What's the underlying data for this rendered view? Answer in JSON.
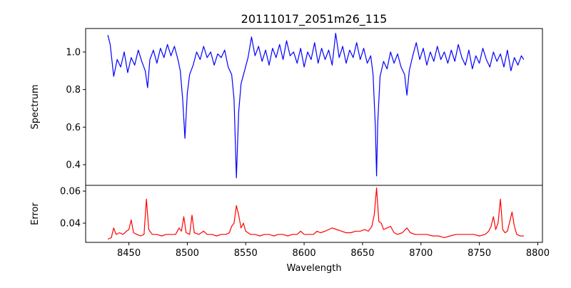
{
  "chart_data": [
    {
      "type": "line",
      "title": "20111017_2051m26_115",
      "xlabel": "",
      "ylabel": "Spectrum",
      "xlim": [
        8413,
        8804
      ],
      "ylim": [
        0.29,
        1.125
      ],
      "yticks": [
        0.4,
        0.6,
        0.8,
        1.0
      ],
      "ytick_labels": [
        "0.4",
        "0.6",
        "0.8",
        "1.0"
      ],
      "color": "#0000ff",
      "points": [
        [
          8432,
          1.09
        ],
        [
          8434,
          1.04
        ],
        [
          8437,
          0.87
        ],
        [
          8440,
          0.96
        ],
        [
          8443,
          0.92
        ],
        [
          8446,
          1.0
        ],
        [
          8449,
          0.89
        ],
        [
          8452,
          0.97
        ],
        [
          8455,
          0.93
        ],
        [
          8458,
          1.01
        ],
        [
          8461,
          0.95
        ],
        [
          8464,
          0.9
        ],
        [
          8466,
          0.81
        ],
        [
          8468,
          0.96
        ],
        [
          8471,
          1.01
        ],
        [
          8474,
          0.94
        ],
        [
          8477,
          1.02
        ],
        [
          8480,
          0.97
        ],
        [
          8483,
          1.04
        ],
        [
          8486,
          0.98
        ],
        [
          8489,
          1.03
        ],
        [
          8492,
          0.96
        ],
        [
          8494,
          0.9
        ],
        [
          8496,
          0.75
        ],
        [
          8498,
          0.54
        ],
        [
          8500,
          0.78
        ],
        [
          8502,
          0.88
        ],
        [
          8505,
          0.93
        ],
        [
          8508,
          1.0
        ],
        [
          8511,
          0.96
        ],
        [
          8514,
          1.03
        ],
        [
          8517,
          0.97
        ],
        [
          8520,
          1.0
        ],
        [
          8523,
          0.93
        ],
        [
          8526,
          0.99
        ],
        [
          8529,
          0.97
        ],
        [
          8532,
          1.01
        ],
        [
          8535,
          0.92
        ],
        [
          8538,
          0.88
        ],
        [
          8540,
          0.75
        ],
        [
          8542,
          0.33
        ],
        [
          8544,
          0.68
        ],
        [
          8546,
          0.83
        ],
        [
          8549,
          0.9
        ],
        [
          8552,
          0.97
        ],
        [
          8555,
          1.08
        ],
        [
          8558,
          0.98
        ],
        [
          8561,
          1.03
        ],
        [
          8564,
          0.95
        ],
        [
          8567,
          1.01
        ],
        [
          8570,
          0.93
        ],
        [
          8573,
          1.02
        ],
        [
          8576,
          0.97
        ],
        [
          8579,
          1.04
        ],
        [
          8582,
          0.96
        ],
        [
          8585,
          1.06
        ],
        [
          8588,
          0.98
        ],
        [
          8591,
          1.0
        ],
        [
          8594,
          0.94
        ],
        [
          8597,
          1.02
        ],
        [
          8600,
          0.92
        ],
        [
          8603,
          1.0
        ],
        [
          8606,
          0.96
        ],
        [
          8609,
          1.05
        ],
        [
          8612,
          0.94
        ],
        [
          8615,
          1.02
        ],
        [
          8618,
          0.96
        ],
        [
          8621,
          1.01
        ],
        [
          8624,
          0.93
        ],
        [
          8627,
          1.1
        ],
        [
          8630,
          0.97
        ],
        [
          8633,
          1.03
        ],
        [
          8636,
          0.94
        ],
        [
          8639,
          1.01
        ],
        [
          8642,
          0.97
        ],
        [
          8645,
          1.05
        ],
        [
          8648,
          0.96
        ],
        [
          8651,
          1.02
        ],
        [
          8654,
          0.94
        ],
        [
          8657,
          0.98
        ],
        [
          8659,
          0.88
        ],
        [
          8661,
          0.6
        ],
        [
          8662,
          0.34
        ],
        [
          8663,
          0.62
        ],
        [
          8665,
          0.87
        ],
        [
          8668,
          0.95
        ],
        [
          8671,
          0.91
        ],
        [
          8674,
          1.0
        ],
        [
          8677,
          0.94
        ],
        [
          8680,
          0.99
        ],
        [
          8683,
          0.92
        ],
        [
          8686,
          0.88
        ],
        [
          8688,
          0.77
        ],
        [
          8690,
          0.9
        ],
        [
          8693,
          0.98
        ],
        [
          8696,
          1.05
        ],
        [
          8699,
          0.96
        ],
        [
          8702,
          1.02
        ],
        [
          8705,
          0.93
        ],
        [
          8708,
          1.0
        ],
        [
          8711,
          0.95
        ],
        [
          8714,
          1.03
        ],
        [
          8717,
          0.96
        ],
        [
          8720,
          1.0
        ],
        [
          8723,
          0.94
        ],
        [
          8726,
          1.01
        ],
        [
          8729,
          0.95
        ],
        [
          8732,
          1.04
        ],
        [
          8735,
          0.97
        ],
        [
          8738,
          0.93
        ],
        [
          8741,
          1.01
        ],
        [
          8744,
          0.91
        ],
        [
          8747,
          0.98
        ],
        [
          8750,
          0.94
        ],
        [
          8753,
          1.02
        ],
        [
          8756,
          0.96
        ],
        [
          8759,
          0.92
        ],
        [
          8762,
          1.0
        ],
        [
          8765,
          0.95
        ],
        [
          8768,
          0.99
        ],
        [
          8771,
          0.92
        ],
        [
          8774,
          1.01
        ],
        [
          8777,
          0.9
        ],
        [
          8780,
          0.97
        ],
        [
          8783,
          0.93
        ],
        [
          8786,
          0.98
        ],
        [
          8788,
          0.96
        ]
      ]
    },
    {
      "type": "line",
      "title": "",
      "xlabel": "Wavelength",
      "ylabel": "Error",
      "xlim": [
        8413,
        8804
      ],
      "ylim": [
        0.028,
        0.0636
      ],
      "xticks": [
        8450,
        8500,
        8550,
        8600,
        8650,
        8700,
        8750,
        8800
      ],
      "xtick_labels": [
        "8450",
        "8500",
        "8550",
        "8600",
        "8650",
        "8700",
        "8750",
        "8800"
      ],
      "yticks": [
        0.04,
        0.06
      ],
      "ytick_labels": [
        "0.04",
        "0.06"
      ],
      "color": "#ff0000",
      "points": [
        [
          8432,
          0.03
        ],
        [
          8435,
          0.031
        ],
        [
          8437,
          0.037
        ],
        [
          8439,
          0.033
        ],
        [
          8442,
          0.034
        ],
        [
          8445,
          0.033
        ],
        [
          8448,
          0.035
        ],
        [
          8450,
          0.036
        ],
        [
          8452,
          0.042
        ],
        [
          8454,
          0.034
        ],
        [
          8457,
          0.033
        ],
        [
          8460,
          0.032
        ],
        [
          8463,
          0.033
        ],
        [
          8465,
          0.055
        ],
        [
          8467,
          0.036
        ],
        [
          8470,
          0.033
        ],
        [
          8474,
          0.033
        ],
        [
          8478,
          0.032
        ],
        [
          8482,
          0.033
        ],
        [
          8486,
          0.033
        ],
        [
          8490,
          0.033
        ],
        [
          8493,
          0.037
        ],
        [
          8495,
          0.035
        ],
        [
          8497,
          0.044
        ],
        [
          8499,
          0.034
        ],
        [
          8502,
          0.033
        ],
        [
          8504,
          0.045
        ],
        [
          8506,
          0.034
        ],
        [
          8510,
          0.033
        ],
        [
          8514,
          0.035
        ],
        [
          8517,
          0.033
        ],
        [
          8521,
          0.033
        ],
        [
          8525,
          0.032
        ],
        [
          8529,
          0.033
        ],
        [
          8533,
          0.033
        ],
        [
          8536,
          0.034
        ],
        [
          8538,
          0.038
        ],
        [
          8540,
          0.04
        ],
        [
          8542,
          0.051
        ],
        [
          8544,
          0.045
        ],
        [
          8546,
          0.037
        ],
        [
          8548,
          0.04
        ],
        [
          8550,
          0.035
        ],
        [
          8554,
          0.033
        ],
        [
          8558,
          0.033
        ],
        [
          8562,
          0.032
        ],
        [
          8566,
          0.033
        ],
        [
          8570,
          0.033
        ],
        [
          8574,
          0.032
        ],
        [
          8578,
          0.033
        ],
        [
          8582,
          0.033
        ],
        [
          8586,
          0.032
        ],
        [
          8590,
          0.033
        ],
        [
          8594,
          0.033
        ],
        [
          8597,
          0.035
        ],
        [
          8600,
          0.033
        ],
        [
          8604,
          0.033
        ],
        [
          8608,
          0.033
        ],
        [
          8611,
          0.035
        ],
        [
          8614,
          0.034
        ],
        [
          8618,
          0.035
        ],
        [
          8621,
          0.036
        ],
        [
          8624,
          0.037
        ],
        [
          8628,
          0.036
        ],
        [
          8632,
          0.035
        ],
        [
          8636,
          0.034
        ],
        [
          8640,
          0.034
        ],
        [
          8644,
          0.035
        ],
        [
          8648,
          0.035
        ],
        [
          8652,
          0.036
        ],
        [
          8655,
          0.035
        ],
        [
          8658,
          0.038
        ],
        [
          8660,
          0.045
        ],
        [
          8662,
          0.062
        ],
        [
          8664,
          0.041
        ],
        [
          8666,
          0.04
        ],
        [
          8668,
          0.036
        ],
        [
          8671,
          0.037
        ],
        [
          8674,
          0.038
        ],
        [
          8677,
          0.034
        ],
        [
          8680,
          0.033
        ],
        [
          8684,
          0.034
        ],
        [
          8688,
          0.037
        ],
        [
          8691,
          0.034
        ],
        [
          8695,
          0.033
        ],
        [
          8700,
          0.033
        ],
        [
          8705,
          0.033
        ],
        [
          8710,
          0.032
        ],
        [
          8715,
          0.032
        ],
        [
          8720,
          0.031
        ],
        [
          8725,
          0.032
        ],
        [
          8730,
          0.033
        ],
        [
          8735,
          0.033
        ],
        [
          8740,
          0.033
        ],
        [
          8745,
          0.033
        ],
        [
          8750,
          0.032
        ],
        [
          8755,
          0.033
        ],
        [
          8758,
          0.035
        ],
        [
          8760,
          0.038
        ],
        [
          8762,
          0.044
        ],
        [
          8764,
          0.036
        ],
        [
          8766,
          0.04
        ],
        [
          8768,
          0.055
        ],
        [
          8770,
          0.036
        ],
        [
          8772,
          0.034
        ],
        [
          8774,
          0.035
        ],
        [
          8776,
          0.041
        ],
        [
          8778,
          0.047
        ],
        [
          8780,
          0.038
        ],
        [
          8782,
          0.033
        ],
        [
          8785,
          0.032
        ],
        [
          8788,
          0.032
        ]
      ]
    }
  ]
}
